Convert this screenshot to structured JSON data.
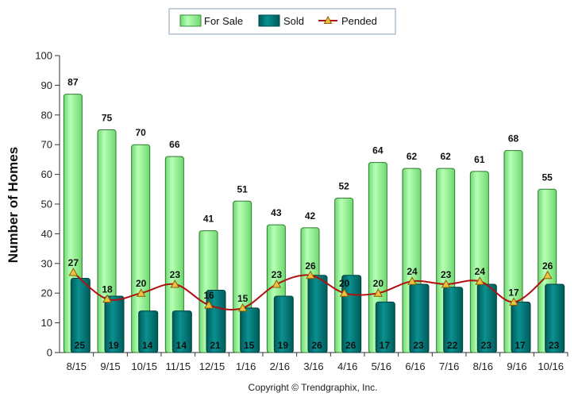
{
  "chart_data": {
    "type": "bar",
    "categories": [
      "8/15",
      "9/15",
      "10/15",
      "11/15",
      "12/15",
      "1/16",
      "2/16",
      "3/16",
      "4/16",
      "5/16",
      "6/16",
      "7/16",
      "8/16",
      "9/16",
      "10/16"
    ],
    "series": [
      {
        "name": "For Sale",
        "type": "bar",
        "color": "#98f598",
        "values": [
          87,
          75,
          70,
          66,
          41,
          51,
          43,
          42,
          52,
          64,
          62,
          62,
          61,
          68,
          55
        ]
      },
      {
        "name": "Sold",
        "type": "bar",
        "color": "#007a7a",
        "values": [
          25,
          19,
          14,
          14,
          21,
          15,
          19,
          26,
          26,
          17,
          23,
          22,
          23,
          17,
          23
        ]
      },
      {
        "name": "Pended",
        "type": "line",
        "color": "#b01010",
        "marker_color": "#f0c040",
        "values": [
          27,
          18,
          20,
          23,
          16,
          15,
          23,
          26,
          20,
          20,
          24,
          23,
          24,
          17,
          26
        ]
      }
    ],
    "ylabel": "Number of Homes",
    "xlabel": "",
    "ylim": [
      0,
      100
    ],
    "yticks": [
      0,
      10,
      20,
      30,
      40,
      50,
      60,
      70,
      80,
      90,
      100
    ],
    "grid": false,
    "legend_position": "top-center"
  },
  "footer": {
    "copyright": "Copyright © Trendgraphix, Inc."
  }
}
